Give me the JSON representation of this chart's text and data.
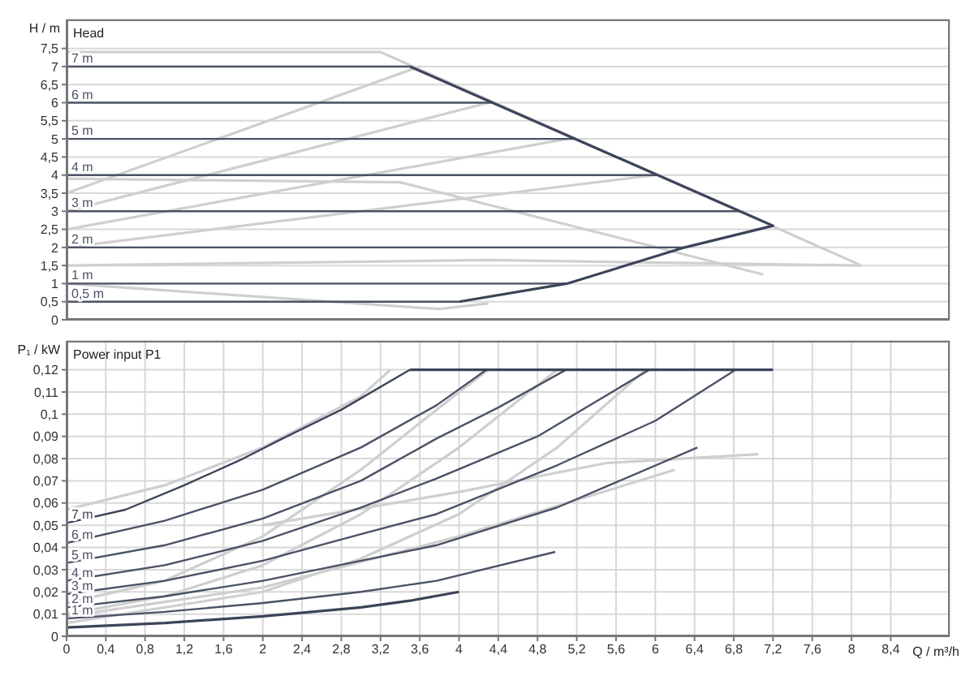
{
  "chart_data": [
    {
      "type": "line",
      "title": "Head",
      "ylabel": "H / m",
      "xlim": [
        0,
        9
      ],
      "ylim": [
        0,
        8.3
      ],
      "xticks": [
        0,
        0.4,
        0.8,
        1.2,
        1.6,
        2,
        2.4,
        2.8,
        3.2,
        3.6,
        4,
        4.4,
        4.8,
        5.2,
        5.6,
        6,
        6.4,
        6.8,
        7.2,
        7.6,
        8,
        8.4
      ],
      "yticks": [
        0,
        {
          "value": 0.5,
          "label": "0,5"
        },
        1,
        {
          "value": 1.5,
          "label": "1,5"
        },
        2,
        {
          "value": 2.5,
          "label": "2,5"
        },
        3,
        {
          "value": 3.5,
          "label": "3,5"
        },
        4,
        {
          "value": 4.5,
          "label": "4,5"
        },
        5,
        {
          "value": 5.5,
          "label": "5,5"
        },
        6,
        {
          "value": 6.5,
          "label": "6,5"
        },
        7,
        {
          "value": 7.5,
          "label": "7,5"
        }
      ],
      "tick_labels": "y",
      "grid": true,
      "marker": "none",
      "line_style": "solid",
      "series": [
        {
          "color": "#cfcfcf",
          "x": [
            0,
            3.2,
            8.1
          ],
          "values": [
            7.4,
            7.4,
            1.5
          ]
        },
        {
          "color": "#cfcfcf",
          "x": [
            0,
            4.3,
            8.1
          ],
          "values": [
            1.5,
            1.65,
            1.5
          ]
        },
        {
          "color": "#cfcfcf",
          "x": [
            0,
            3.6
          ],
          "values": [
            3.5,
            7.0
          ]
        },
        {
          "color": "#cfcfcf",
          "x": [
            0,
            4.3
          ],
          "values": [
            3,
            6
          ]
        },
        {
          "color": "#cfcfcf",
          "x": [
            0,
            5.1
          ],
          "values": [
            2.5,
            5
          ]
        },
        {
          "color": "#cfcfcf",
          "x": [
            0,
            6.0
          ],
          "values": [
            2,
            4
          ]
        },
        {
          "color": "#cfcfcf",
          "x": [
            0,
            3.4,
            7.1
          ],
          "values": [
            3.9,
            3.8,
            1.25
          ]
        },
        {
          "color": "#cfcfcf",
          "x": [
            0,
            3.5,
            3.8,
            4.3
          ],
          "values": [
            1,
            0.35,
            0.3,
            0.45
          ]
        },
        {
          "name": "7 m",
          "color": "#4a5266",
          "x": [
            0,
            3.5
          ],
          "values": [
            7,
            7
          ]
        },
        {
          "name": "6 m",
          "color": "#4a5266",
          "x": [
            0,
            4.34
          ],
          "values": [
            6,
            6
          ]
        },
        {
          "name": "5 m",
          "color": "#4a5266",
          "x": [
            0,
            5.18
          ],
          "values": [
            5,
            5
          ]
        },
        {
          "name": "4 m",
          "color": "#4a5266",
          "x": [
            0,
            6.02
          ],
          "values": [
            4,
            4
          ]
        },
        {
          "name": "3 m",
          "color": "#4a5266",
          "x": [
            0,
            6.86
          ],
          "values": [
            3,
            3
          ]
        },
        {
          "name": "2 m",
          "color": "#4a5266",
          "x": [
            0,
            6.3
          ],
          "values": [
            2,
            2
          ]
        },
        {
          "name": "1 m",
          "color": "#4a5266",
          "x": [
            0,
            5.1
          ],
          "values": [
            1,
            1
          ]
        },
        {
          "name": "0,5 m",
          "color": "#4a5266",
          "x": [
            0,
            4
          ],
          "values": [
            0.5,
            0.5
          ]
        },
        {
          "color": "#3c4458",
          "x": [
            3.5,
            7.2,
            6.3,
            5.1,
            4
          ],
          "values": [
            7,
            2.6,
            2,
            1,
            0.5
          ]
        }
      ]
    },
    {
      "type": "line",
      "title": "Power input P1",
      "ylabel": "P₁ / kW",
      "xlabel": "Q / m³/h",
      "xlim": [
        0,
        9
      ],
      "ylim": [
        0,
        0.133
      ],
      "xticks": [
        0,
        {
          "value": 0.4,
          "label": "0,4"
        },
        {
          "value": 0.8,
          "label": "0,8"
        },
        {
          "value": 1.2,
          "label": "1,2"
        },
        {
          "value": 1.6,
          "label": "1,6"
        },
        2,
        {
          "value": 2.4,
          "label": "2,4"
        },
        {
          "value": 2.8,
          "label": "2,8"
        },
        {
          "value": 3.2,
          "label": "3,2"
        },
        {
          "value": 3.6,
          "label": "3,6"
        },
        4,
        {
          "value": 4.4,
          "label": "4,4"
        },
        {
          "value": 4.8,
          "label": "4,8"
        },
        {
          "value": 5.2,
          "label": "5,2"
        },
        {
          "value": 5.6,
          "label": "5,6"
        },
        6,
        {
          "value": 6.4,
          "label": "6,4"
        },
        {
          "value": 6.8,
          "label": "6,8"
        },
        {
          "value": 7.2,
          "label": "7,2"
        },
        {
          "value": 7.6,
          "label": "7,6"
        },
        8,
        {
          "value": 8.4,
          "label": "8,4"
        }
      ],
      "yticks": [
        0,
        {
          "value": 0.01,
          "label": "0,01"
        },
        {
          "value": 0.02,
          "label": "0,02"
        },
        {
          "value": 0.03,
          "label": "0,03"
        },
        {
          "value": 0.04,
          "label": "0,04"
        },
        {
          "value": 0.05,
          "label": "0,05"
        },
        {
          "value": 0.06,
          "label": "0,06"
        },
        {
          "value": 0.07,
          "label": "0,07"
        },
        {
          "value": 0.08,
          "label": "0,08"
        },
        {
          "value": 0.09,
          "label": "0,09"
        },
        {
          "value": 0.1,
          "label": "0,1"
        },
        {
          "value": 0.11,
          "label": "0,11"
        },
        {
          "value": 0.12,
          "label": "0,12"
        }
      ],
      "grid": true,
      "marker": "none",
      "line_style": "solid",
      "series": [
        {
          "color": "#cfcfcf",
          "x": [
            0,
            1,
            2,
            3,
            3.3
          ],
          "values": [
            0.057,
            0.068,
            0.085,
            0.108,
            0.12
          ]
        },
        {
          "color": "#cfcfcf",
          "x": [
            0,
            1,
            2,
            3,
            4,
            4.3
          ],
          "values": [
            0.015,
            0.025,
            0.045,
            0.075,
            0.11,
            0.12
          ]
        },
        {
          "color": "#cfcfcf",
          "x": [
            0,
            1,
            2,
            3,
            4,
            5
          ],
          "values": [
            0.01,
            0.018,
            0.032,
            0.055,
            0.085,
            0.12
          ]
        },
        {
          "color": "#cfcfcf",
          "x": [
            0,
            2,
            3,
            4,
            5,
            5.9
          ],
          "values": [
            0.006,
            0.02,
            0.035,
            0.055,
            0.085,
            0.12
          ]
        },
        {
          "color": "#cfcfcf",
          "x": [
            0,
            2,
            4,
            6.2
          ],
          "values": [
            0.009,
            0.022,
            0.045,
            0.075
          ]
        },
        {
          "color": "#cfcfcf",
          "x": [
            2,
            4,
            5.5,
            7.05
          ],
          "values": [
            0.05,
            0.065,
            0.078,
            0.082
          ]
        },
        {
          "name": "7 m",
          "color": "#3c4458",
          "x": [
            0,
            0.6,
            1.2,
            1.8,
            2.2,
            2.8,
            3.5
          ],
          "values": [
            0.051,
            0.057,
            0.068,
            0.08,
            0.089,
            0.102,
            0.12
          ]
        },
        {
          "name": "6 m",
          "color": "#4a5266",
          "x": [
            0,
            1,
            2,
            3,
            3.77,
            4.28
          ],
          "values": [
            0.042,
            0.052,
            0.066,
            0.085,
            0.104,
            0.12
          ]
        },
        {
          "name": "5 m",
          "color": "#4a5266",
          "x": [
            0,
            1,
            2,
            3,
            3.77,
            4.4,
            5.09
          ],
          "values": [
            0.033,
            0.041,
            0.053,
            0.07,
            0.089,
            0.103,
            0.12
          ]
        },
        {
          "name": "4 m",
          "color": "#4a5266",
          "x": [
            0,
            1,
            2,
            3,
            3.77,
            4.8,
            5.94
          ],
          "values": [
            0.025,
            0.032,
            0.043,
            0.058,
            0.071,
            0.09,
            0.12
          ]
        },
        {
          "name": "3 m",
          "color": "#4a5266",
          "x": [
            0,
            1,
            2,
            3,
            3.77,
            5,
            6,
            6.82
          ],
          "values": [
            0.019,
            0.025,
            0.034,
            0.046,
            0.055,
            0.077,
            0.097,
            0.12
          ]
        },
        {
          "name": "2 m",
          "color": "#4a5266",
          "x": [
            0,
            1,
            2,
            3,
            3.77,
            5,
            6.43
          ],
          "values": [
            0.013,
            0.018,
            0.025,
            0.034,
            0.041,
            0.058,
            0.085
          ]
        },
        {
          "name": "1 m",
          "color": "#4a5266",
          "x": [
            0,
            1,
            2,
            3,
            3.77,
            4.98
          ],
          "values": [
            0.008,
            0.011,
            0.015,
            0.02,
            0.025,
            0.038
          ]
        },
        {
          "color": "#3c4458",
          "x": [
            0,
            1,
            2,
            3,
            3.5,
            4
          ],
          "values": [
            0.004,
            0.006,
            0.009,
            0.013,
            0.016,
            0.02
          ]
        },
        {
          "color": "#3c4458",
          "x": [
            3.5,
            7.2
          ],
          "values": [
            0.12,
            0.12
          ]
        }
      ]
    }
  ]
}
